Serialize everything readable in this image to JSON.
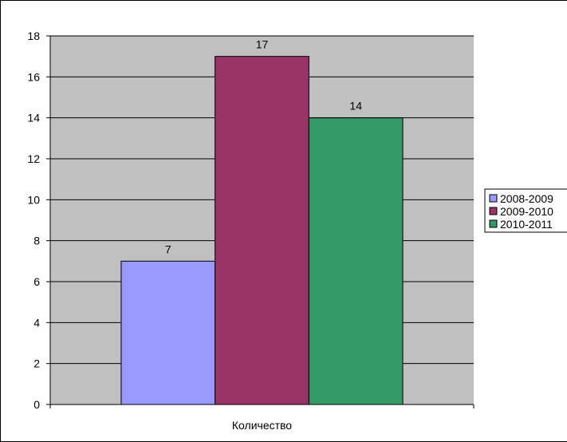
{
  "chart_data": {
    "type": "bar",
    "categories": [
      "Количество"
    ],
    "series": [
      {
        "name": "2008-2009",
        "values": [
          7
        ],
        "color": "#9999ff"
      },
      {
        "name": "2009-2010",
        "values": [
          17
        ],
        "color": "#993366"
      },
      {
        "name": "2010-2011",
        "values": [
          14
        ],
        "color": "#339966"
      }
    ],
    "ylim": [
      0,
      18
    ],
    "yticks": [
      0,
      2,
      4,
      6,
      8,
      10,
      12,
      14,
      16,
      18
    ],
    "grid": true,
    "plot_background": "#c0c0c0",
    "legend_position": "right",
    "data_labels": true
  }
}
